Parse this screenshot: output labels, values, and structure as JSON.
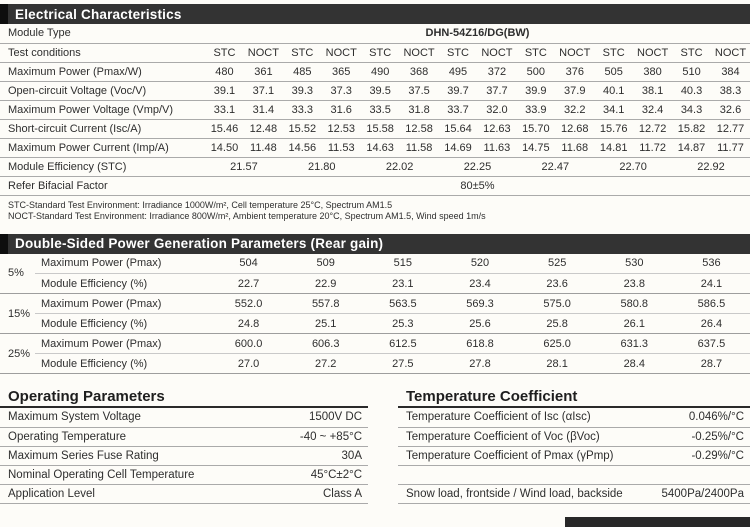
{
  "electrical": {
    "title": "Electrical Characteristics",
    "module_type_label": "Module Type",
    "module_type_value": "DHN-54Z16/DG(BW)",
    "test_conditions_label": "Test conditions",
    "condition_headers": [
      "STC",
      "NOCT",
      "STC",
      "NOCT",
      "STC",
      "NOCT",
      "STC",
      "NOCT",
      "STC",
      "NOCT",
      "STC",
      "NOCT",
      "STC",
      "NOCT"
    ],
    "rows": [
      {
        "label": "Maximum Power (Pmax/W)",
        "values": [
          "480",
          "361",
          "485",
          "365",
          "490",
          "368",
          "495",
          "372",
          "500",
          "376",
          "505",
          "380",
          "510",
          "384"
        ]
      },
      {
        "label": "Open-circuit Voltage (Voc/V)",
        "values": [
          "39.1",
          "37.1",
          "39.3",
          "37.3",
          "39.5",
          "37.5",
          "39.7",
          "37.7",
          "39.9",
          "37.9",
          "40.1",
          "38.1",
          "40.3",
          "38.3"
        ]
      },
      {
        "label": "Maximum Power Voltage (Vmp/V)",
        "values": [
          "33.1",
          "31.4",
          "33.3",
          "31.6",
          "33.5",
          "31.8",
          "33.7",
          "32.0",
          "33.9",
          "32.2",
          "34.1",
          "32.4",
          "34.3",
          "32.6"
        ]
      },
      {
        "label": "Short-circuit Current (Isc/A)",
        "values": [
          "15.46",
          "12.48",
          "15.52",
          "12.53",
          "15.58",
          "12.58",
          "15.64",
          "12.63",
          "15.70",
          "12.68",
          "15.76",
          "12.72",
          "15.82",
          "12.77"
        ]
      },
      {
        "label": "Maximum Power Current (Imp/A)",
        "values": [
          "14.50",
          "11.48",
          "14.56",
          "11.53",
          "14.63",
          "11.58",
          "14.69",
          "11.63",
          "14.75",
          "11.68",
          "14.81",
          "11.72",
          "14.87",
          "11.77"
        ]
      }
    ],
    "efficiency_row": {
      "label": "Module Efficiency (STC)",
      "values": [
        "21.57",
        "21.80",
        "22.02",
        "22.25",
        "22.47",
        "22.70",
        "22.92"
      ]
    },
    "bifacial_row": {
      "label": "Refer Bifacial Factor",
      "value": "80±5%"
    },
    "footnotes": [
      "STC-Standard Test Environment: Irradiance 1000W/m², Cell temperature 25°C, Spectrum AM1.5",
      "NOCT-Standard Test Environment: Irradiance 800W/m², Ambient temperature 20°C, Spectrum AM1.5, Wind speed 1m/s"
    ]
  },
  "rear_gain": {
    "title": "Double-Sided Power Generation Parameters (Rear gain)",
    "groups": [
      {
        "gain": "5%",
        "rows": [
          {
            "label": "Maximum Power (Pmax)",
            "values": [
              "504",
              "509",
              "515",
              "520",
              "525",
              "530",
              "536"
            ]
          },
          {
            "label": "Module Efficiency (%)",
            "values": [
              "22.7",
              "22.9",
              "23.1",
              "23.4",
              "23.6",
              "23.8",
              "24.1"
            ]
          }
        ]
      },
      {
        "gain": "15%",
        "rows": [
          {
            "label": "Maximum Power (Pmax)",
            "values": [
              "552.0",
              "557.8",
              "563.5",
              "569.3",
              "575.0",
              "580.8",
              "586.5"
            ]
          },
          {
            "label": "Module Efficiency (%)",
            "values": [
              "24.8",
              "25.1",
              "25.3",
              "25.6",
              "25.8",
              "26.1",
              "26.4"
            ]
          }
        ]
      },
      {
        "gain": "25%",
        "rows": [
          {
            "label": "Maximum Power (Pmax)",
            "values": [
              "600.0",
              "606.3",
              "612.5",
              "618.8",
              "625.0",
              "631.3",
              "637.5"
            ]
          },
          {
            "label": "Module Efficiency (%)",
            "values": [
              "27.0",
              "27.2",
              "27.5",
              "27.8",
              "28.1",
              "28.4",
              "28.7"
            ]
          }
        ]
      }
    ]
  },
  "operating": {
    "title": "Operating Parameters",
    "rows": [
      {
        "label": "Maximum System Voltage",
        "value": "1500V DC"
      },
      {
        "label": "Operating Temperature",
        "value": "-40 ~ +85°C"
      },
      {
        "label": "Maximum Series Fuse Rating",
        "value": "30A"
      },
      {
        "label": "Nominal Operating Cell Temperature",
        "value": "45°C±2°C"
      },
      {
        "label": "Application Level",
        "value": "Class A"
      }
    ]
  },
  "temperature": {
    "title": "Temperature Coefficient",
    "rows": [
      {
        "label": "Temperature Coefficient of Isc (αIsc)",
        "value": "0.046%/°C"
      },
      {
        "label": "Temperature Coefficient of Voc (βVoc)",
        "value": "-0.25%/°C"
      },
      {
        "label": "Temperature Coefficient of Pmax (γPmp)",
        "value": "-0.29%/°C"
      }
    ],
    "load_row": {
      "label": "Snow load, frontside / Wind load, backside",
      "value": "5400Pa/2400Pa"
    }
  },
  "colors": {
    "header_bar": "#333333",
    "header_notch": "#0e0e0e",
    "border": "#aaaaaa",
    "text": "#2b2b2b",
    "background": "#fdfcf8"
  }
}
